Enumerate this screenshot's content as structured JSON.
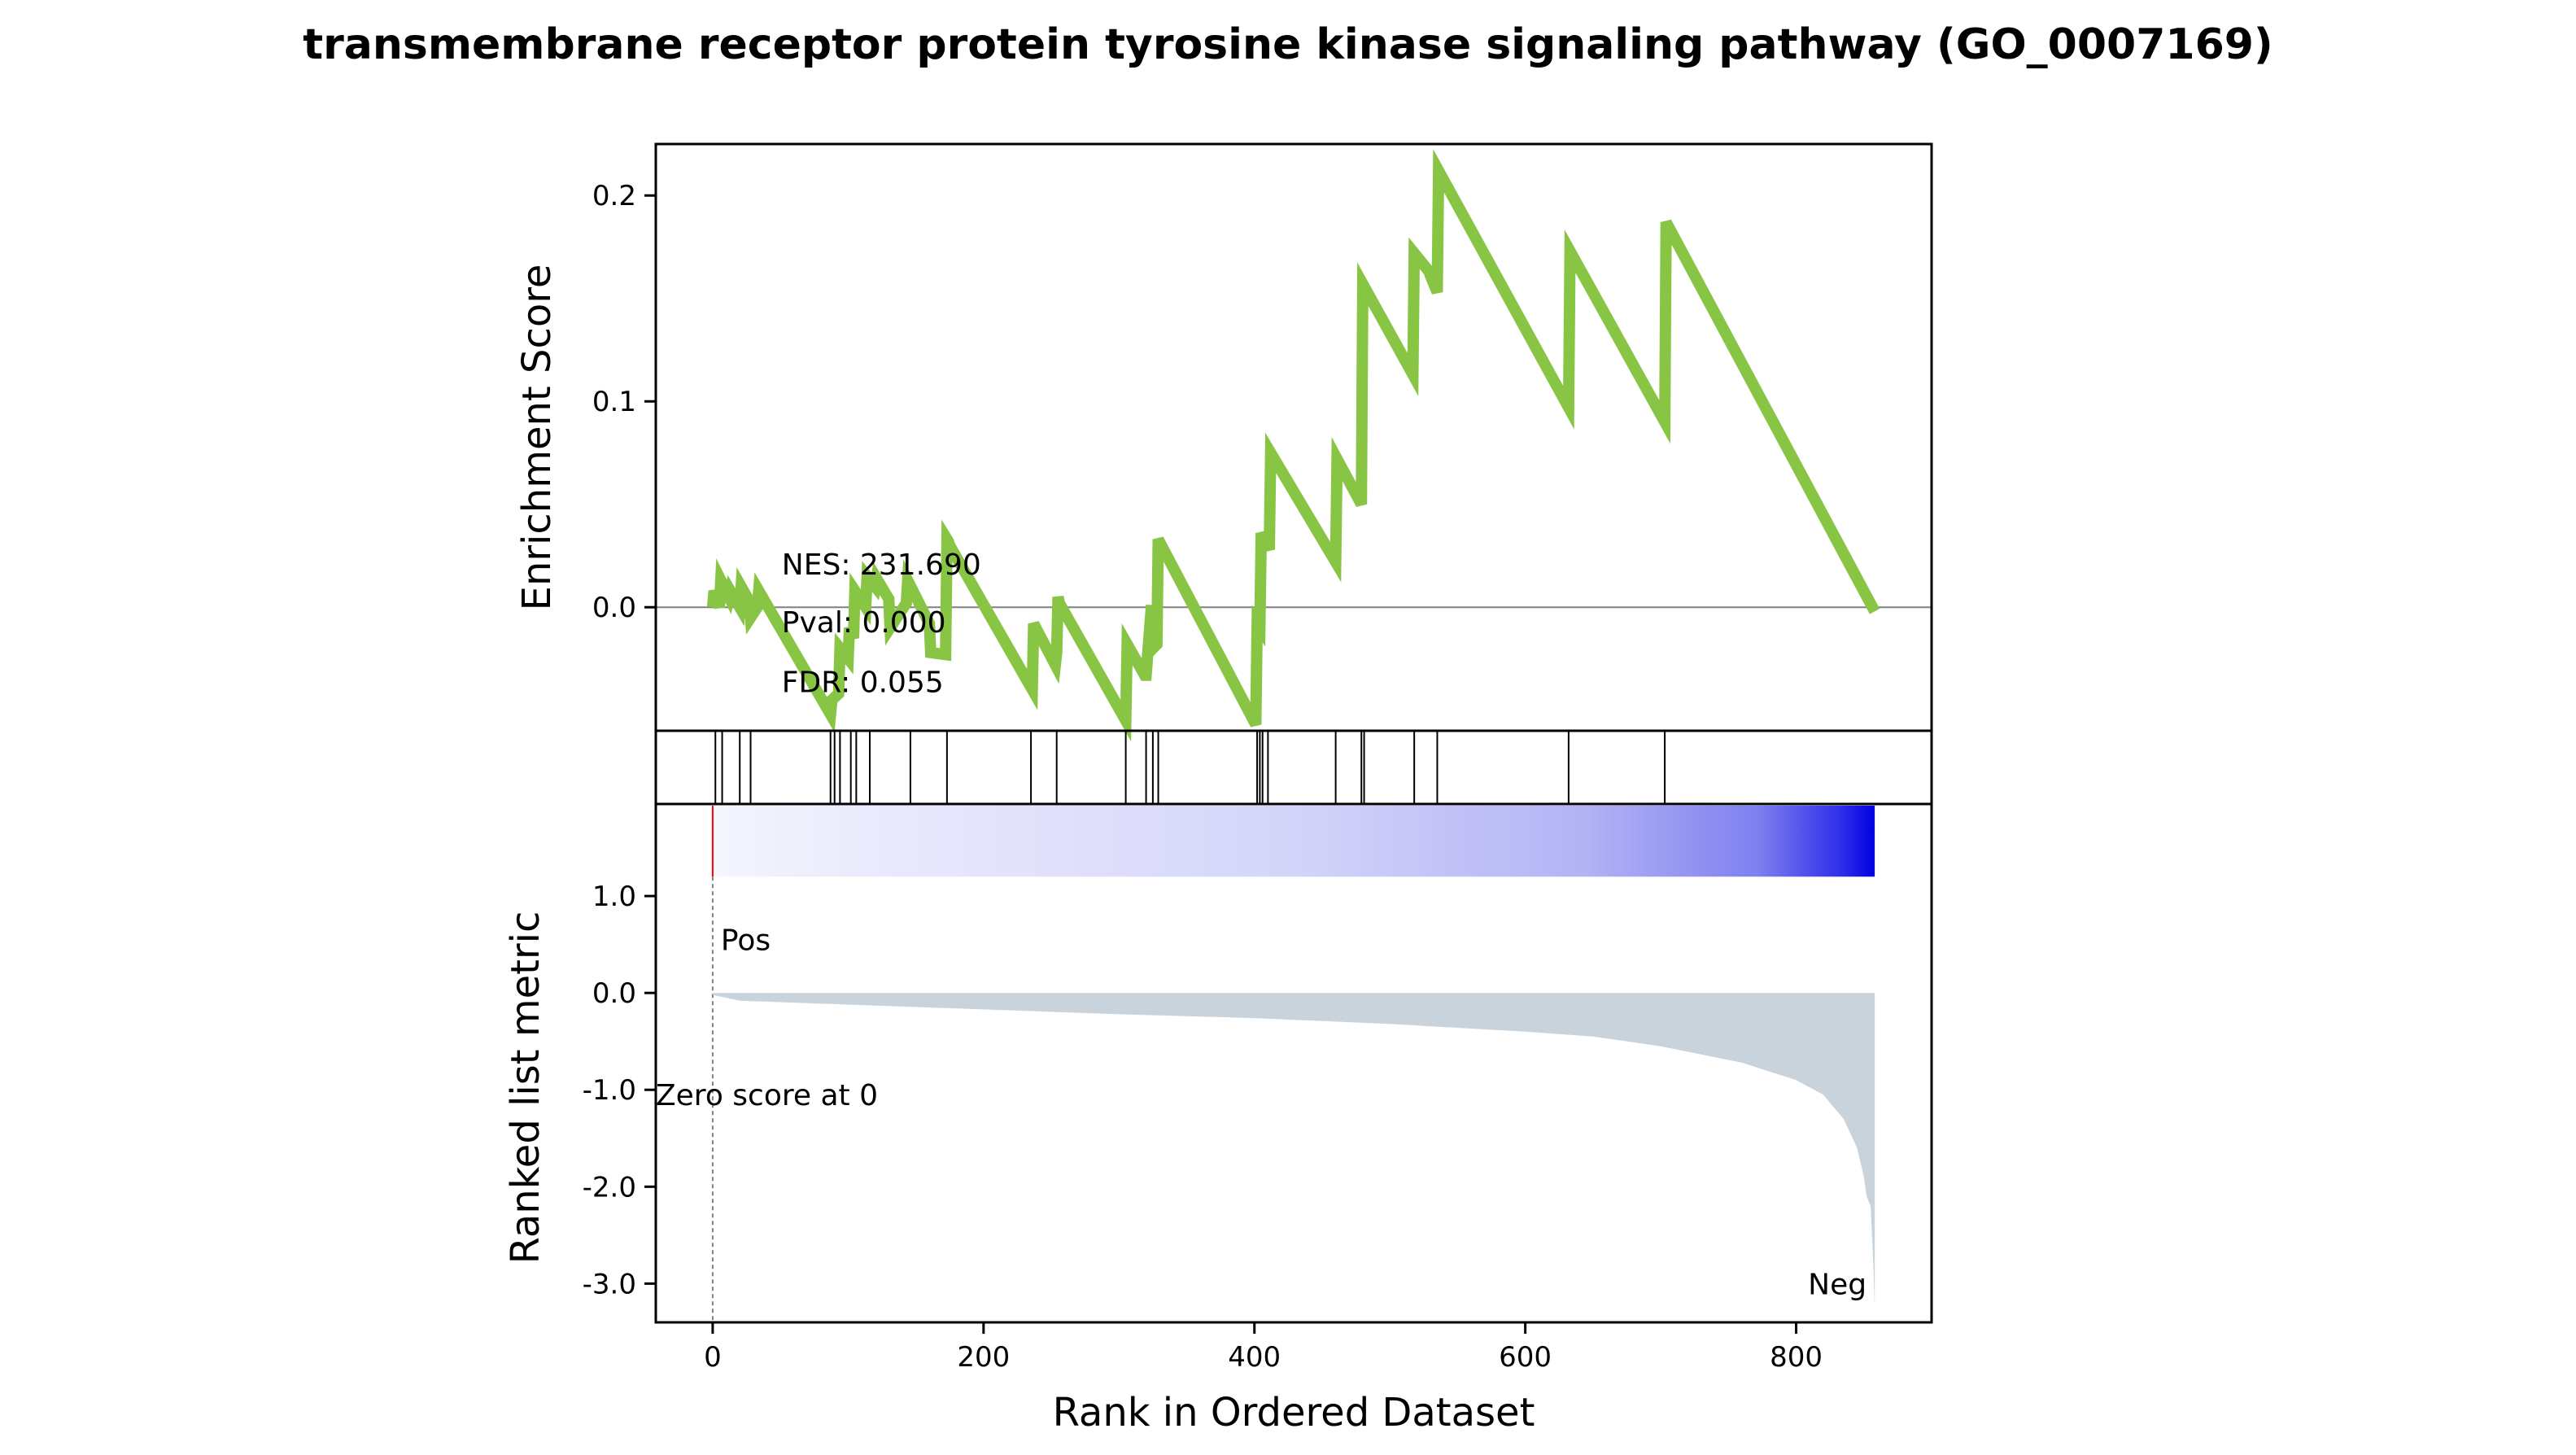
{
  "figure": {
    "title": "transmembrane receptor protein tyrosine kinase signaling pathway (GO_0007169)",
    "xlabel": "Rank in Ordered Dataset"
  },
  "colors": {
    "es_line": "#88c544",
    "hit_line": "#000000",
    "metric_fill": "#c9d3dc",
    "pos_label": "#ff0000",
    "neg_label": "#0000ff",
    "zero_line": "#808080",
    "heat_low": "#f4f4fd",
    "heat_high": "#0000e0"
  },
  "chart_data": [
    {
      "type": "line",
      "panel": "enrichment",
      "ylabel": "Enrichment Score",
      "xlim": [
        -42,
        900
      ],
      "ylim": [
        -0.06,
        0.225
      ],
      "yticks": [
        0.0,
        0.1,
        0.2
      ],
      "ytick_labels": [
        "0.0",
        "0.1",
        "0.2"
      ],
      "zero_line": true,
      "annotations": {
        "nes": "NES: 231.690",
        "pval": "Pval: 0.000",
        "fdr": "FDR: 0.055"
      },
      "x": [
        0,
        1,
        5,
        6,
        12,
        13,
        20,
        21,
        27,
        28,
        33,
        34,
        87,
        88,
        93,
        94,
        100,
        101,
        104,
        105,
        113,
        114,
        120,
        121,
        130,
        131,
        143,
        144,
        160,
        161,
        172,
        173,
        174,
        175,
        236,
        237,
        253,
        254,
        255,
        256,
        305,
        306,
        319,
        320,
        324,
        325,
        328,
        329,
        401,
        402,
        404,
        405,
        411,
        412,
        460,
        461,
        479,
        480,
        517,
        518,
        529,
        530,
        535,
        536,
        632,
        633,
        703,
        704,
        858
      ],
      "y": [
        0.0,
        0.008,
        0.0,
        0.013,
        0.005,
        0.008,
        0.0,
        0.01,
        0.003,
        -0.005,
        0.0,
        0.008,
        -0.052,
        -0.045,
        -0.042,
        -0.02,
        -0.025,
        -0.01,
        -0.015,
        0.008,
        0.0,
        0.015,
        0.01,
        0.014,
        0.004,
        -0.01,
        0.002,
        0.013,
        -0.008,
        -0.022,
        -0.023,
        0.033,
        0.032,
        0.03,
        -0.04,
        -0.008,
        -0.028,
        -0.022,
        0.005,
        0.002,
        -0.055,
        -0.018,
        -0.033,
        -0.033,
        0.001,
        -0.02,
        -0.018,
        0.033,
        -0.057,
        -0.008,
        -0.01,
        0.036,
        0.028,
        0.075,
        0.022,
        0.072,
        0.05,
        0.157,
        0.113,
        0.172,
        0.163,
        0.161,
        0.153,
        0.212,
        0.097,
        0.173,
        0.09,
        0.187,
        -0.002
      ]
    },
    {
      "type": "heatmap",
      "panel": "hits",
      "positions": [
        2,
        7,
        20,
        28,
        87,
        90,
        94,
        102,
        106,
        116,
        146,
        173,
        235,
        254,
        305,
        320,
        325,
        329,
        402,
        404,
        406,
        410,
        460,
        479,
        481,
        518,
        535,
        632,
        703
      ]
    },
    {
      "type": "area",
      "panel": "ranked-metric",
      "ylabel": "Ranked list metric",
      "ylim": [
        -3.4,
        1.95
      ],
      "yticks": [
        1.0,
        0.0,
        -1.0,
        -2.0,
        -3.0
      ],
      "ytick_labels": [
        "1.0",
        "0.0",
        "-1.0",
        "-2.0",
        "-3.0"
      ],
      "xticks": [
        0,
        200,
        400,
        600,
        800
      ],
      "xtick_labels": [
        "0",
        "200",
        "400",
        "600",
        "800"
      ],
      "pos_label": "Pos",
      "neg_label": "Neg",
      "zero_label": "Zero score at 0",
      "heatbar_ybounds": [
        1.2,
        1.95
      ],
      "x": [
        0,
        20,
        100,
        200,
        300,
        400,
        500,
        600,
        650,
        700,
        760,
        800,
        820,
        835,
        845,
        850,
        852,
        855,
        857,
        858
      ],
      "y": [
        -0.02,
        -0.08,
        -0.12,
        -0.17,
        -0.22,
        -0.26,
        -0.32,
        -0.4,
        -0.45,
        -0.55,
        -0.72,
        -0.9,
        -1.05,
        -1.3,
        -1.6,
        -1.9,
        -2.1,
        -2.2,
        -2.8,
        -3.25
      ]
    }
  ]
}
